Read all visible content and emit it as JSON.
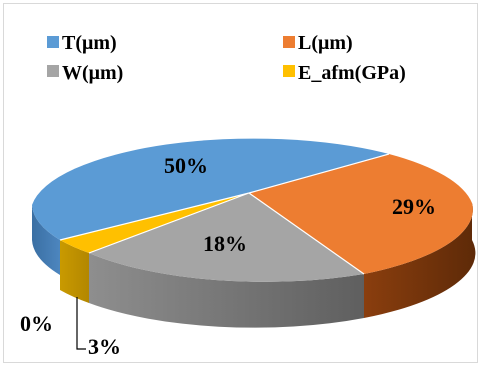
{
  "chart_data": {
    "type": "pie",
    "style": "3d",
    "legend_position": "top",
    "categories": [
      "T(μm)",
      "L(μm)",
      "W(μm)",
      "E_afm(GPa)"
    ],
    "values": [
      50,
      29,
      18,
      3
    ],
    "data_labels": [
      "50%",
      "29%",
      "18%",
      "3%"
    ],
    "extra_label": "0%",
    "colors": [
      "#5b9bd5",
      "#ed7d31",
      "#a5a5a5",
      "#ffc000"
    ]
  }
}
